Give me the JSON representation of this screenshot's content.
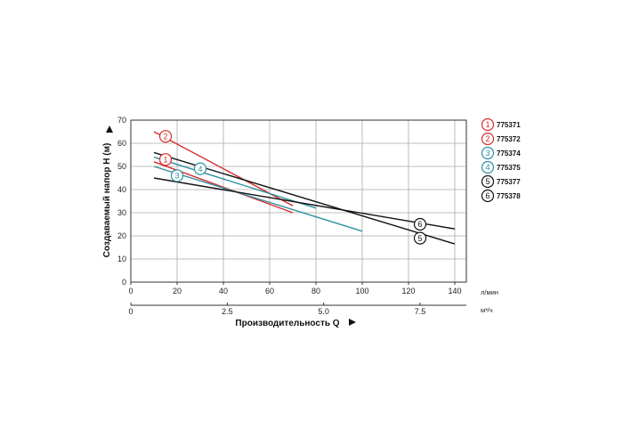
{
  "chart_data": {
    "type": "line",
    "title": "",
    "ylabel": "Создаваемый напор H (м)",
    "xlabel": "Производительность Q",
    "x_unit_primary": "л/мин",
    "x_unit_secondary": "м³/ч",
    "xlim": [
      0,
      145
    ],
    "ylim": [
      0,
      70
    ],
    "x_ticks": [
      0,
      20,
      40,
      60,
      80,
      100,
      120,
      140
    ],
    "y_ticks": [
      0,
      10,
      20,
      30,
      40,
      50,
      60,
      70
    ],
    "x2_ticks": [
      0,
      2.5,
      5.0,
      7.5
    ],
    "x2_tick_labels": [
      "0",
      "2.5",
      "5.0",
      "7.5"
    ],
    "grid": true,
    "legend_position": "right",
    "series": [
      {
        "name": "775371",
        "marker": "1",
        "color": "#d62b2b",
        "x": [
          10,
          70
        ],
        "y": [
          52,
          30
        ],
        "label_at": [
          15,
          53
        ]
      },
      {
        "name": "775372",
        "marker": "2",
        "color": "#d62b2b",
        "x": [
          10,
          70
        ],
        "y": [
          65,
          33
        ],
        "label_at": [
          15,
          63
        ]
      },
      {
        "name": "775374",
        "marker": "3",
        "color": "#2e8fa0",
        "x": [
          10,
          100
        ],
        "y": [
          50,
          22
        ],
        "label_at": [
          20,
          46
        ]
      },
      {
        "name": "775375",
        "marker": "4",
        "color": "#2e8fa0",
        "x": [
          10,
          80
        ],
        "y": [
          54,
          32
        ],
        "label_at": [
          30,
          49
        ]
      },
      {
        "name": "775377",
        "marker": "5",
        "color": "#111111",
        "x": [
          10,
          140
        ],
        "y": [
          56,
          16.5
        ],
        "label_at": [
          125,
          19
        ]
      },
      {
        "name": "775378",
        "marker": "6",
        "color": "#111111",
        "x": [
          10,
          140
        ],
        "y": [
          45,
          23
        ],
        "label_at": [
          125,
          25
        ]
      }
    ]
  }
}
